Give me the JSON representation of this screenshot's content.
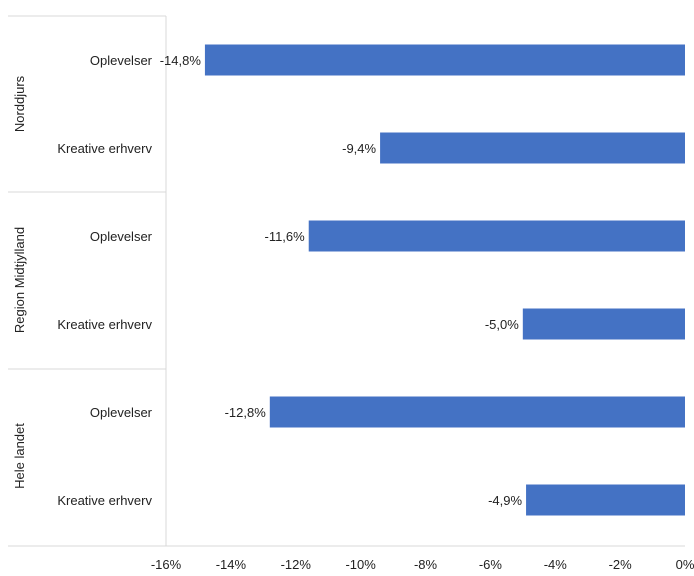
{
  "chart_data": {
    "type": "bar",
    "orientation": "horizontal",
    "title": "",
    "xlabel": "",
    "ylabel": "",
    "xlim": [
      -16,
      0
    ],
    "x_ticks": [
      -16,
      -14,
      -12,
      -10,
      -8,
      -6,
      -4,
      -2,
      0
    ],
    "x_tick_labels": [
      "-16%",
      "-14%",
      "-12%",
      "-10%",
      "-8%",
      "-6%",
      "-4%",
      "-2%",
      "0%"
    ],
    "grid": false,
    "legend": "none",
    "bar_color": "#4472c4",
    "groups": [
      {
        "name": "Norddjurs",
        "items": [
          {
            "category": "Oplevelser",
            "value": -14.8,
            "label": "-14,8%"
          },
          {
            "category": "Kreative erhverv",
            "value": -9.4,
            "label": "-9,4%"
          }
        ]
      },
      {
        "name": "Region Midtjylland",
        "items": [
          {
            "category": "Oplevelser",
            "value": -11.6,
            "label": "-11,6%"
          },
          {
            "category": "Kreative erhverv",
            "value": -5.0,
            "label": "-5,0%"
          }
        ]
      },
      {
        "name": "Hele landet",
        "items": [
          {
            "category": "Oplevelser",
            "value": -12.8,
            "label": "-12,8%"
          },
          {
            "category": "Kreative erhverv",
            "value": -4.9,
            "label": "-4,9%"
          }
        ]
      }
    ]
  }
}
